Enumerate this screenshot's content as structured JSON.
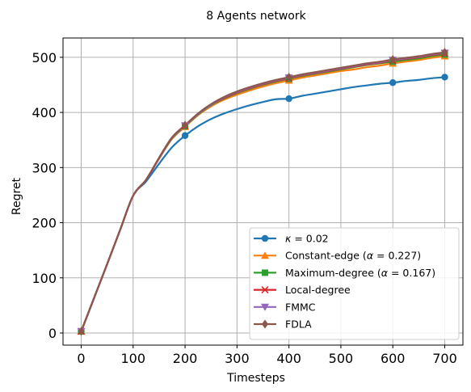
{
  "chart_data": {
    "type": "line",
    "title": "8 Agents network",
    "xlabel": "Timesteps",
    "ylabel": "Regret",
    "xlim": [
      -35,
      735
    ],
    "ylim": [
      -22,
      535
    ],
    "xticks": [
      0,
      100,
      200,
      300,
      400,
      500,
      600,
      700
    ],
    "yticks": [
      0,
      100,
      200,
      300,
      400,
      500
    ],
    "grid": true,
    "legend_position": "lower-right",
    "x": [
      0,
      25,
      50,
      75,
      100,
      125,
      150,
      175,
      200,
      225,
      250,
      275,
      300,
      325,
      350,
      375,
      400,
      425,
      450,
      475,
      500,
      525,
      550,
      575,
      600,
      625,
      650,
      675,
      700
    ],
    "series": [
      {
        "name": "κ = 0.02",
        "label_parts": [
          {
            "t": "κ",
            "i": true
          },
          {
            "t": " = 0.02",
            "i": false
          }
        ],
        "color": "#1f77b4",
        "marker": "circle",
        "values": [
          3,
          64,
          125,
          187,
          249,
          275,
          307,
          337,
          358,
          375,
          388,
          398,
          406,
          413,
          419,
          424,
          425,
          430,
          434,
          438,
          442,
          446,
          449,
          452,
          454,
          457,
          459,
          462,
          464
        ]
      },
      {
        "name": "Constant-edge (α = 0.227)",
        "label_parts": [
          {
            "t": "Constant-edge (",
            "i": false
          },
          {
            "t": "α",
            "i": true
          },
          {
            "t": " = 0.227)",
            "i": false
          }
        ],
        "color": "#ff7f0e",
        "marker": "triangle-up",
        "values": [
          3,
          64,
          125,
          187,
          249,
          278,
          316,
          352,
          374,
          395,
          411,
          423,
          432,
          440,
          447,
          453,
          458,
          463,
          467,
          471,
          475,
          478,
          482,
          485,
          489,
          492,
          495,
          499,
          502
        ]
      },
      {
        "name": "Maximum-degree (α = 0.167)",
        "label_parts": [
          {
            "t": "Maximum-degree (",
            "i": false
          },
          {
            "t": "α",
            "i": true
          },
          {
            "t": " = 0.167)",
            "i": false
          }
        ],
        "color": "#2ca02c",
        "marker": "square",
        "values": [
          3,
          64,
          125,
          187,
          249,
          278,
          317,
          353,
          375,
          396,
          413,
          425,
          435,
          443,
          450,
          456,
          461,
          466,
          470,
          474,
          478,
          482,
          486,
          489,
          492,
          495,
          498,
          502,
          505
        ]
      },
      {
        "name": "Local-degree",
        "label_parts": [
          {
            "t": "Local-degree",
            "i": false
          }
        ],
        "color": "#d62728",
        "marker": "x",
        "values": [
          3,
          64,
          125,
          187,
          249,
          278,
          317,
          354,
          376,
          397,
          414,
          426,
          436,
          444,
          451,
          457,
          462,
          467,
          471,
          475,
          479,
          483,
          487,
          490,
          494,
          497,
          500,
          504,
          507
        ]
      },
      {
        "name": "FMMC",
        "label_parts": [
          {
            "t": "FMMC",
            "i": false
          }
        ],
        "color": "#9467bd",
        "marker": "triangle-down",
        "values": [
          3,
          64,
          125,
          187,
          249,
          278,
          317,
          354,
          376,
          397,
          414,
          427,
          437,
          445,
          452,
          458,
          463,
          468,
          472,
          476,
          480,
          484,
          488,
          491,
          495,
          498,
          501,
          505,
          508
        ]
      },
      {
        "name": "FDLA",
        "label_parts": [
          {
            "t": "FDLA",
            "i": false
          }
        ],
        "color": "#8c564b",
        "marker": "diamond",
        "values": [
          3,
          64,
          125,
          187,
          249,
          278,
          318,
          355,
          377,
          398,
          415,
          428,
          438,
          446,
          453,
          459,
          464,
          469,
          473,
          477,
          481,
          485,
          489,
          492,
          496,
          499,
          502,
          506,
          509
        ]
      }
    ],
    "marker_x": [
      0,
      200,
      400,
      600,
      700
    ]
  }
}
